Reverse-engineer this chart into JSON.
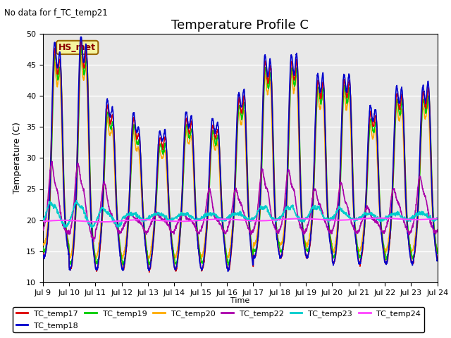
{
  "title": "Temperature Profile C",
  "subtitle": "No data for f_TC_temp21",
  "ylabel": "Temperature (C)",
  "xlabel": "Time",
  "ylim": [
    10,
    50
  ],
  "plot_bg_color": "#e8e8e8",
  "fig_bg_color": "#ffffff",
  "hs_met_label": "HS_met",
  "series_colors": {
    "TC_temp17": "#dd0000",
    "TC_temp18": "#0000cc",
    "TC_temp19": "#00cc00",
    "TC_temp20": "#ffaa00",
    "TC_temp22": "#aa00aa",
    "TC_temp23": "#00cccc",
    "TC_temp24": "#ff44ff"
  },
  "xtick_labels": [
    "Jul 9",
    "Jul 10",
    "Jul 11",
    "Jul 12",
    "Jul 13",
    "Jul 14",
    "Jul 15",
    "Jul 16",
    "Jul 17",
    "Jul 18",
    "Jul 19",
    "Jul 20",
    "Jul 21",
    "Jul 22",
    "Jul 23",
    "Jul 24"
  ],
  "ytick_labels": [
    10,
    15,
    20,
    25,
    30,
    35,
    40,
    45,
    50
  ],
  "peak_heights": [
    47,
    48,
    38,
    36,
    33,
    36,
    35,
    39,
    45,
    45,
    42,
    42,
    37,
    40,
    40,
    40
  ],
  "peak2_heights": [
    43,
    44,
    35,
    32,
    32,
    34,
    33,
    38,
    42,
    43,
    40,
    40,
    35,
    38,
    39,
    38
  ],
  "trough_heights": [
    14,
    12,
    12,
    12,
    12,
    12,
    12,
    12,
    14,
    14,
    14,
    13,
    13,
    13,
    13,
    13
  ]
}
